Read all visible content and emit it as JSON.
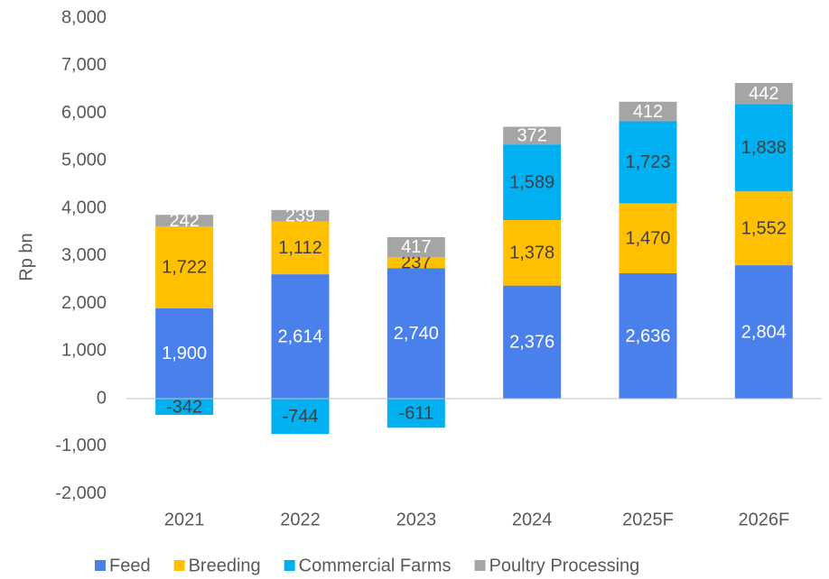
{
  "chart_data": {
    "type": "stacked_bar",
    "y_label": "Rp bn",
    "categories": [
      "2021",
      "2022",
      "2023",
      "2024",
      "2025F",
      "2026F"
    ],
    "series": [
      {
        "name": "Feed",
        "color": "#4a80ec",
        "values": [
          1900,
          2614,
          2740,
          2376,
          2636,
          2804
        ],
        "value_labels": [
          "1,900",
          "2,614",
          "2,740",
          "2,376",
          "2,636",
          "2,804"
        ]
      },
      {
        "name": "Breeding",
        "color": "#ffc000",
        "values": [
          1722,
          1112,
          237,
          1378,
          1470,
          1552
        ],
        "value_labels": [
          "1,722",
          "1,112",
          "237",
          "1,378",
          "1,470",
          "1,552"
        ]
      },
      {
        "name": "Commercial Farms",
        "color": "#00b0f0",
        "values": [
          -342,
          -744,
          -611,
          1589,
          1723,
          1838
        ],
        "value_labels": [
          "-342",
          "-744",
          "-611",
          "1,589",
          "1,723",
          "1,838"
        ]
      },
      {
        "name": "Poultry Processing",
        "color": "#a5a5a5",
        "values": [
          242,
          239,
          417,
          372,
          412,
          442
        ],
        "value_labels": [
          "242",
          "239",
          "417",
          "372",
          "412",
          "442"
        ]
      }
    ],
    "ylim": [
      -2000,
      8000
    ],
    "yticks": [
      {
        "value": -2000,
        "label": "-2,000"
      },
      {
        "value": -1000,
        "label": "-1,000"
      },
      0,
      {
        "value": 1000,
        "label": "1,000"
      },
      {
        "value": 2000,
        "label": "2,000"
      },
      {
        "value": 3000,
        "label": "3,000"
      },
      {
        "value": 4000,
        "label": "4,000"
      },
      {
        "value": 5000,
        "label": "5,000"
      },
      {
        "value": 6000,
        "label": "6,000"
      },
      {
        "value": 7000,
        "label": "7,000"
      },
      {
        "value": {
          "value": 8000,
          "label": "8,000"
        },
        "label": "8,000"
      }
    ],
    "grid": false,
    "legend": "bottom"
  }
}
